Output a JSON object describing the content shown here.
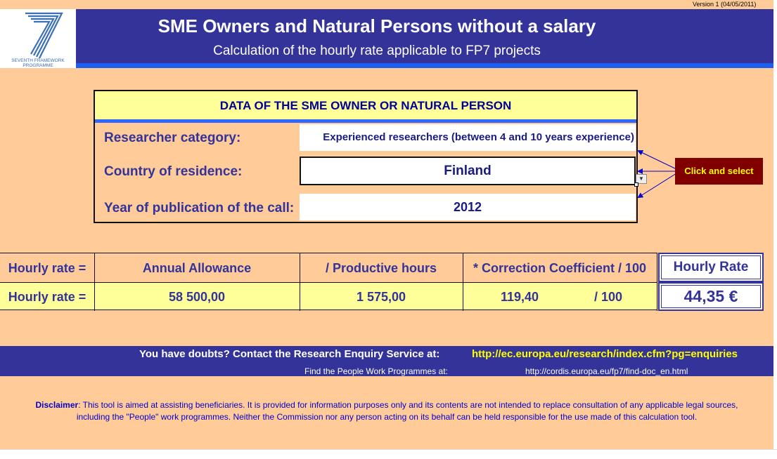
{
  "version": "Version 1 (04/05/2011)",
  "logo": {
    "icon": "fp7-seven-logo",
    "text_line1": "SEVENTH FRAMEWORK",
    "text_line2": "PROGRAMME"
  },
  "header": {
    "title": "SME Owners and Natural Persons without a salary",
    "subtitle": "Calculation of the hourly rate applicable to FP7 projects"
  },
  "panel": {
    "heading": "DATA OF THE SME OWNER OR NATURAL PERSON",
    "fields": [
      {
        "label": "Researcher category:",
        "value": "Experienced researchers (between 4 and 10 years experience)"
      },
      {
        "label": "Country of residence:",
        "value": "Finland"
      },
      {
        "label": "Year of publication of the call:",
        "value": "2012"
      }
    ],
    "hint": "Click and select"
  },
  "rate_table": {
    "row1": {
      "label": "Hourly rate =",
      "annual": "Annual Allowance",
      "hours": "/ Productive hours",
      "coef": "* Correction Coefficient / 100",
      "result": "Hourly Rate"
    },
    "row2": {
      "label": "Hourly rate =",
      "annual": "58 500,00",
      "hours": "1 575,00",
      "coef": "119,40",
      "divisor": "/ 100",
      "result": "44,35 €"
    }
  },
  "contact": {
    "question": "You have doubts? Contact the Research Enquiry Service at:",
    "url": "http://ec.europa.eu/research/index.cfm?pg=enquiries",
    "wp_label": "Find the People Work Programmes at:",
    "wp_url": "http://cordis.europa.eu/fp7/find-doc_en.html"
  },
  "disclaimer": {
    "label": "Disclaimer",
    "text1": ": This tool is aimed at assisting beneficiaries. It is provided for information purposes only and its contents are not intended to replace consultation of any applicable legal sources,",
    "text2": "including the \"People\" work programmes. Neither the Commission nor any person acting on its behalf can be held responsible for the use made of this calculation tool."
  },
  "colors": {
    "background": "#FFCC99",
    "header": "#333399",
    "highlight": "#FFFF99",
    "hint_bg": "#800000",
    "hint_fg": "#FFFF00"
  }
}
